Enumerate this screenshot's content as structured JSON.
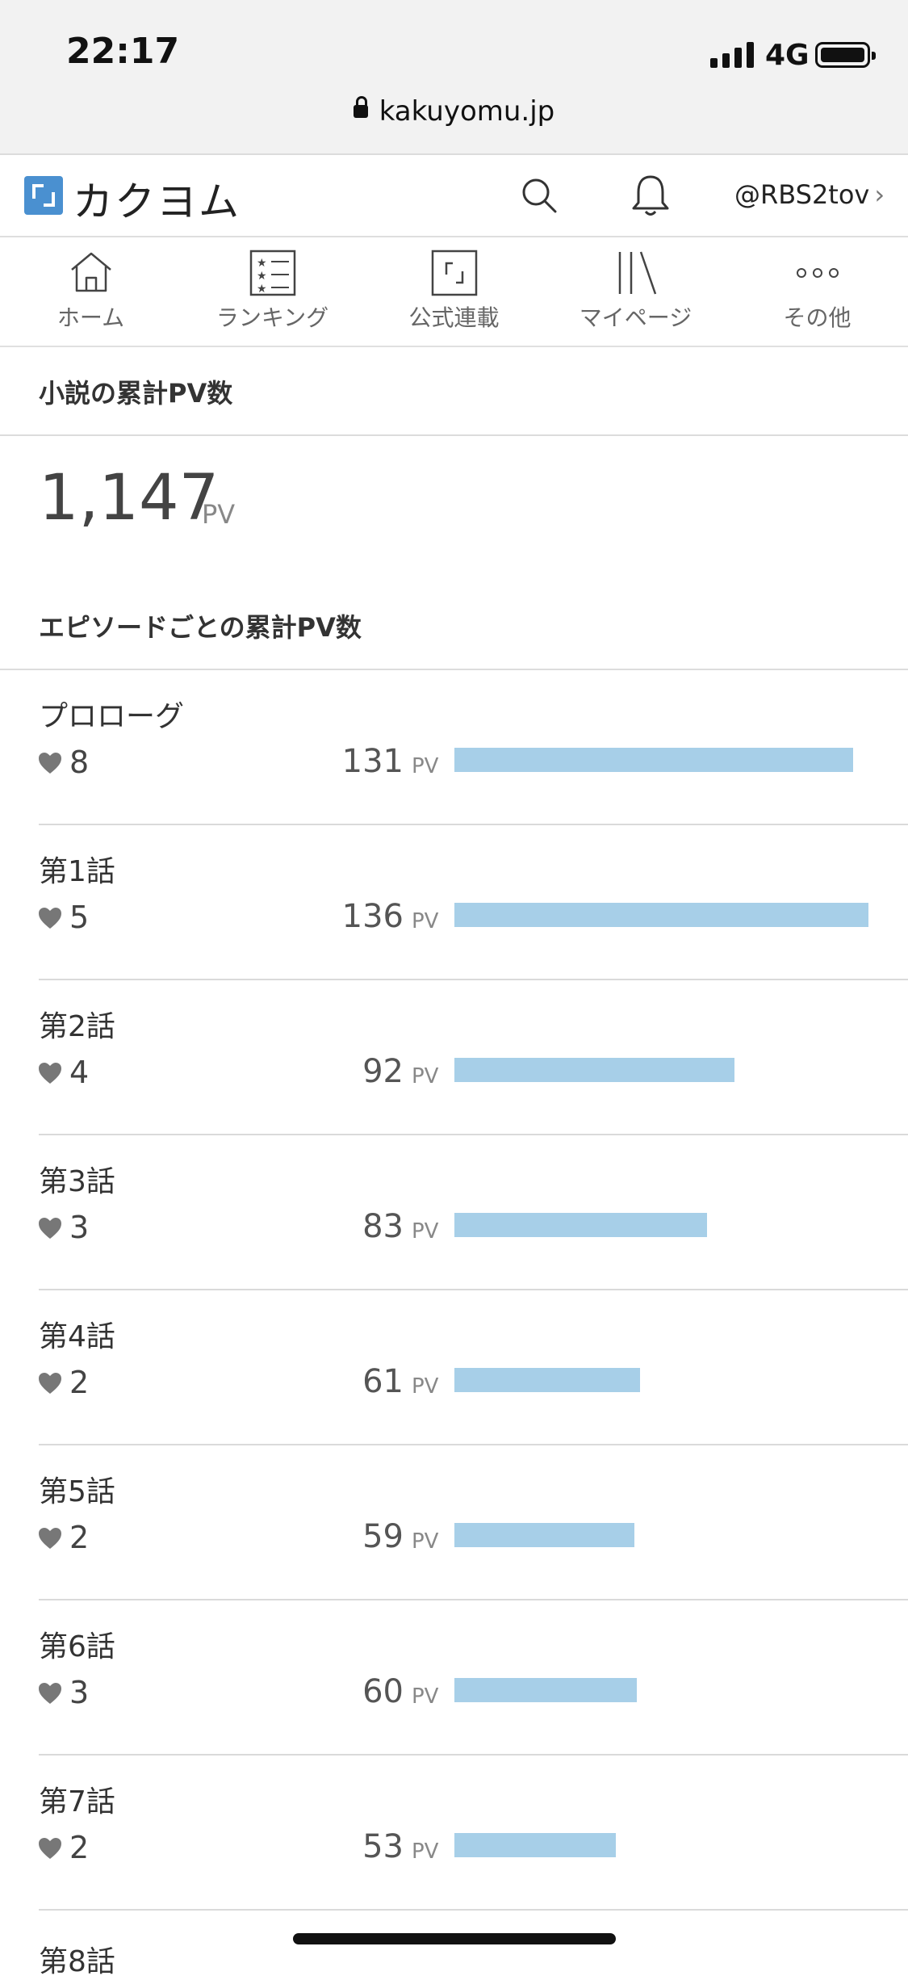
{
  "status": {
    "time": "22:17",
    "network": "4G",
    "url": "kakuyomu.jp"
  },
  "header": {
    "logo": "カクヨム",
    "user": "@RBS2tov",
    "chevron": "›"
  },
  "nav": {
    "items": [
      {
        "label": "ホーム",
        "icon": "home-icon"
      },
      {
        "label": "ランキング",
        "icon": "ranking-icon"
      },
      {
        "label": "公式連載",
        "icon": "official-icon"
      },
      {
        "label": "マイページ",
        "icon": "mypage-icon"
      },
      {
        "label": "その他",
        "icon": "more-icon"
      }
    ]
  },
  "summary": {
    "title": "小説の累計PV数",
    "total": "1,147",
    "unit": "PV"
  },
  "episodes_section": {
    "title": "エピソードごとの累計PV数"
  },
  "episodes": [
    {
      "title": "プロローグ",
      "likes": 8,
      "pv": 131,
      "unit": "PV"
    },
    {
      "title": "第1話",
      "likes": 5,
      "pv": 136,
      "unit": "PV"
    },
    {
      "title": "第2話",
      "likes": 4,
      "pv": 92,
      "unit": "PV"
    },
    {
      "title": "第3話",
      "likes": 3,
      "pv": 83,
      "unit": "PV"
    },
    {
      "title": "第4話",
      "likes": 2,
      "pv": 61,
      "unit": "PV"
    },
    {
      "title": "第5話",
      "likes": 2,
      "pv": 59,
      "unit": "PV"
    },
    {
      "title": "第6話",
      "likes": 3,
      "pv": 60,
      "unit": "PV"
    },
    {
      "title": "第7話",
      "likes": 2,
      "pv": 53,
      "unit": "PV"
    }
  ],
  "partial_row": {
    "title": "第8話"
  },
  "colors": {
    "bar": "#a7cfe8",
    "logo": "#4a90d0"
  }
}
